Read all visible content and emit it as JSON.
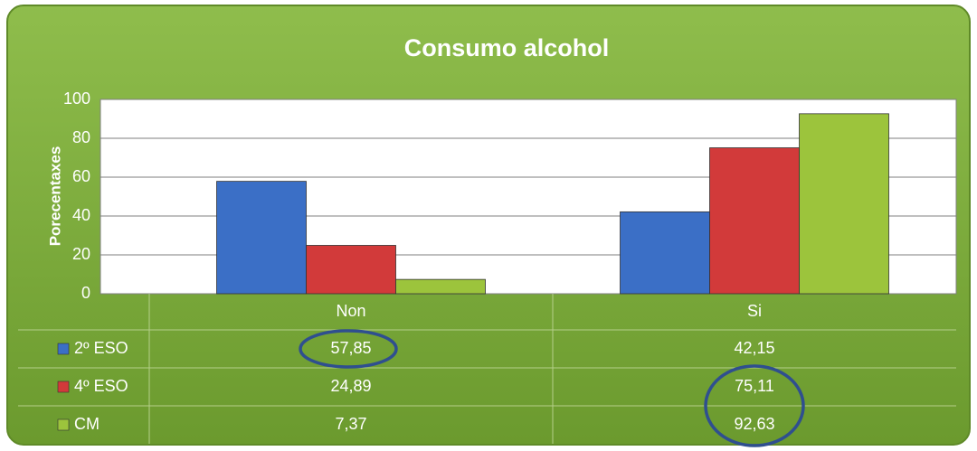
{
  "chart_data": {
    "type": "bar",
    "title": "Consumo alcohol",
    "y_label": "Porecentaxes",
    "categories": [
      "Non",
      "Si"
    ],
    "series": [
      {
        "name": "2º ESO",
        "color": "#3b6fc6",
        "values": [
          57.85,
          42.15
        ],
        "value_labels": [
          "57,85",
          "42,15"
        ]
      },
      {
        "name": "4º ESO",
        "color": "#d23a3a",
        "values": [
          24.89,
          75.11
        ],
        "value_labels": [
          "24,89",
          "75,11"
        ]
      },
      {
        "name": "CM",
        "color": "#9cc43c",
        "values": [
          7.37,
          92.63
        ],
        "value_labels": [
          "7,37",
          "92,63"
        ]
      }
    ],
    "ylim": [
      0,
      100
    ],
    "yticks": [
      0,
      20,
      40,
      60,
      80,
      100
    ],
    "grid": true,
    "data_table": true
  }
}
